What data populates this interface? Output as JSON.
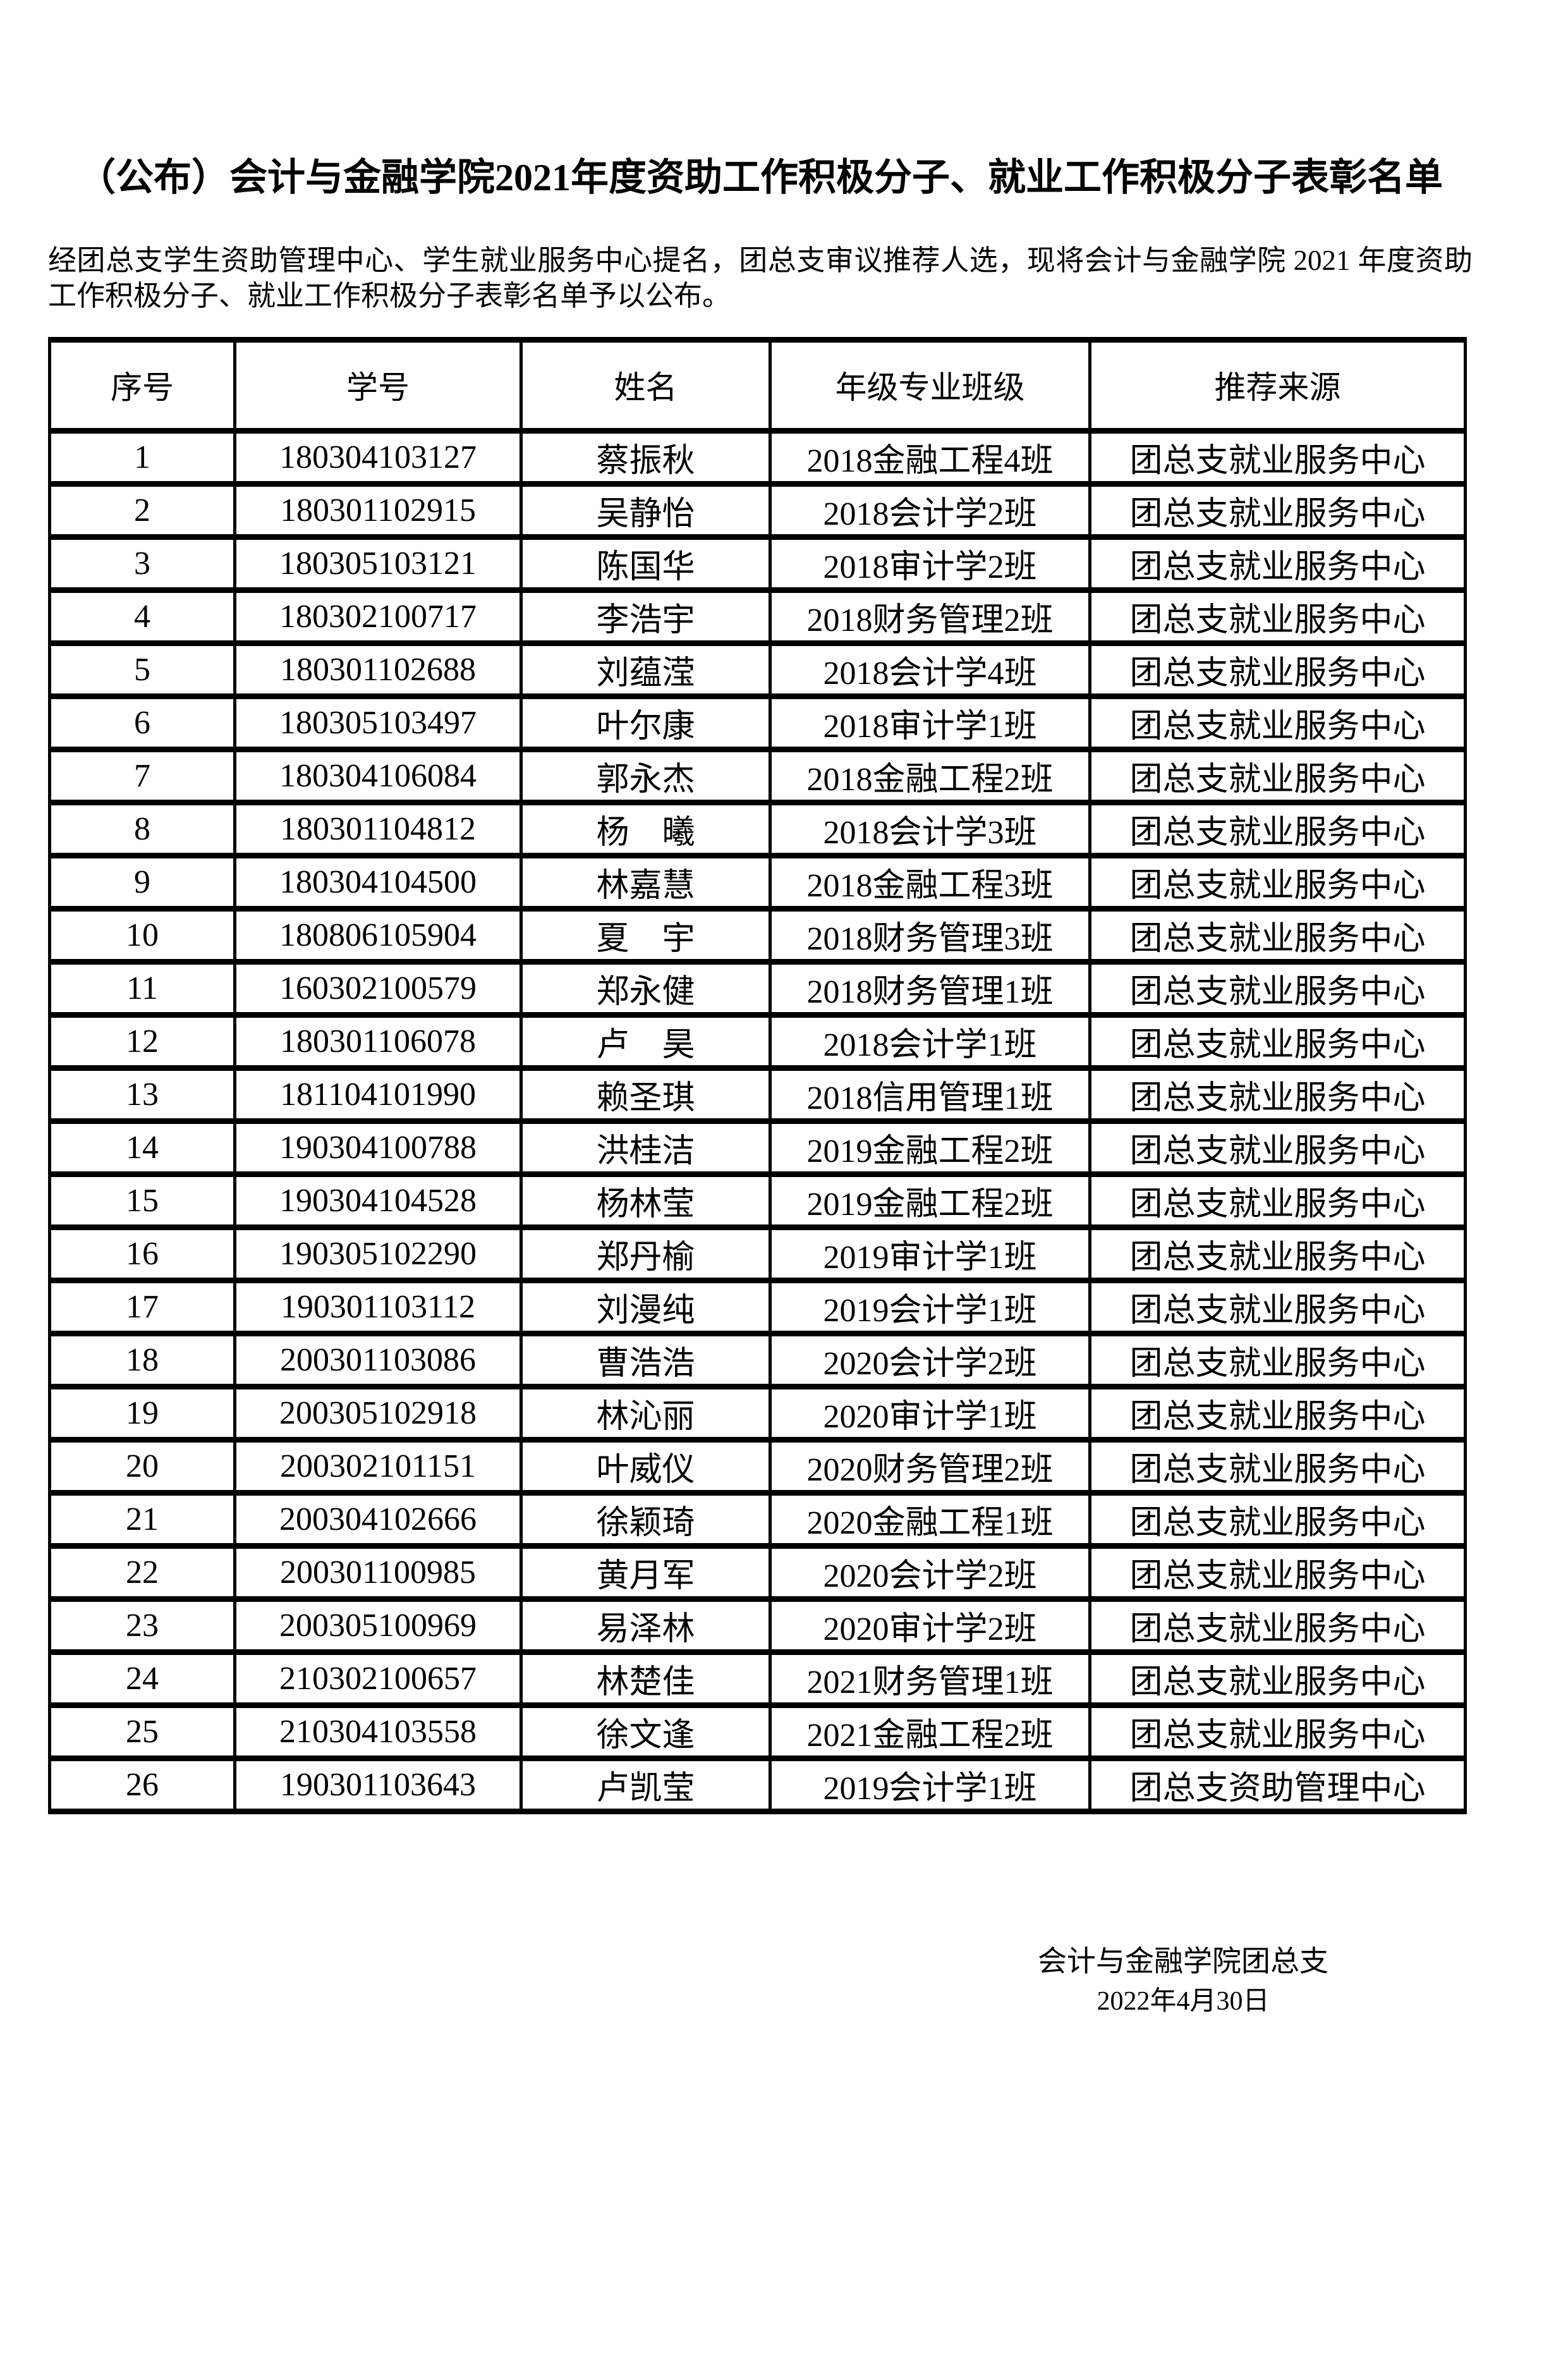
{
  "page": {
    "title": "（公布）会计与金融学院2021年度资助工作积极分子、就业工作积极分子表彰名单",
    "intro": "经团总支学生资助管理中心、学生就业服务中心提名，团总支审议推荐人选，现将会计与金融学院 2021 年度资助工作积极分子、就业工作积极分子表彰名单予以公布。",
    "signature": {
      "org": "会计与金融学院团总支",
      "date": "2022年4月30日"
    }
  },
  "table": {
    "headers": [
      "序号",
      "学号",
      "姓名",
      "年级专业班级",
      "推荐来源"
    ],
    "rows": [
      [
        "1",
        "180304103127",
        "蔡振秋",
        "2018金融工程4班",
        "团总支就业服务中心"
      ],
      [
        "2",
        "180301102915",
        "吴静怡",
        "2018会计学2班",
        "团总支就业服务中心"
      ],
      [
        "3",
        "180305103121",
        "陈国华",
        "2018审计学2班",
        "团总支就业服务中心"
      ],
      [
        "4",
        "180302100717",
        "李浩宇",
        "2018财务管理2班",
        "团总支就业服务中心"
      ],
      [
        "5",
        "180301102688",
        "刘蕴滢",
        "2018会计学4班",
        "团总支就业服务中心"
      ],
      [
        "6",
        "180305103497",
        "叶尔康",
        "2018审计学1班",
        "团总支就业服务中心"
      ],
      [
        "7",
        "180304106084",
        "郭永杰",
        "2018金融工程2班",
        "团总支就业服务中心"
      ],
      [
        "8",
        "180301104812",
        "杨　曦",
        "2018会计学3班",
        "团总支就业服务中心"
      ],
      [
        "9",
        "180304104500",
        "林嘉慧",
        "2018金融工程3班",
        "团总支就业服务中心"
      ],
      [
        "10",
        "180806105904",
        "夏　宇",
        "2018财务管理3班",
        "团总支就业服务中心"
      ],
      [
        "11",
        "160302100579",
        "郑永健",
        "2018财务管理1班",
        "团总支就业服务中心"
      ],
      [
        "12",
        "180301106078",
        "卢　昊",
        "2018会计学1班",
        "团总支就业服务中心"
      ],
      [
        "13",
        "181104101990",
        "赖圣琪",
        "2018信用管理1班",
        "团总支就业服务中心"
      ],
      [
        "14",
        "190304100788",
        "洪桂洁",
        "2019金融工程2班",
        "团总支就业服务中心"
      ],
      [
        "15",
        "190304104528",
        "杨林莹",
        "2019金融工程2班",
        "团总支就业服务中心"
      ],
      [
        "16",
        "190305102290",
        "郑丹榆",
        "2019审计学1班",
        "团总支就业服务中心"
      ],
      [
        "17",
        "190301103112",
        "刘漫纯",
        "2019会计学1班",
        "团总支就业服务中心"
      ],
      [
        "18",
        "200301103086",
        "曹浩浩",
        "2020会计学2班",
        "团总支就业服务中心"
      ],
      [
        "19",
        "200305102918",
        "林沁丽",
        "2020审计学1班",
        "团总支就业服务中心"
      ],
      [
        "20",
        "200302101151",
        "叶威仪",
        "2020财务管理2班",
        "团总支就业服务中心"
      ],
      [
        "21",
        "200304102666",
        "徐颖琦",
        "2020金融工程1班",
        "团总支就业服务中心"
      ],
      [
        "22",
        "200301100985",
        "黄月军",
        "2020会计学2班",
        "团总支就业服务中心"
      ],
      [
        "23",
        "200305100969",
        "易泽林",
        "2020审计学2班",
        "团总支就业服务中心"
      ],
      [
        "24",
        "210302100657",
        "林楚佳",
        "2021财务管理1班",
        "团总支就业服务中心"
      ],
      [
        "25",
        "210304103558",
        "徐文逢",
        "2021金融工程2班",
        "团总支就业服务中心"
      ],
      [
        "26",
        "190301103643",
        "卢凯莹",
        "2019会计学1班",
        "团总支资助管理中心"
      ]
    ]
  }
}
